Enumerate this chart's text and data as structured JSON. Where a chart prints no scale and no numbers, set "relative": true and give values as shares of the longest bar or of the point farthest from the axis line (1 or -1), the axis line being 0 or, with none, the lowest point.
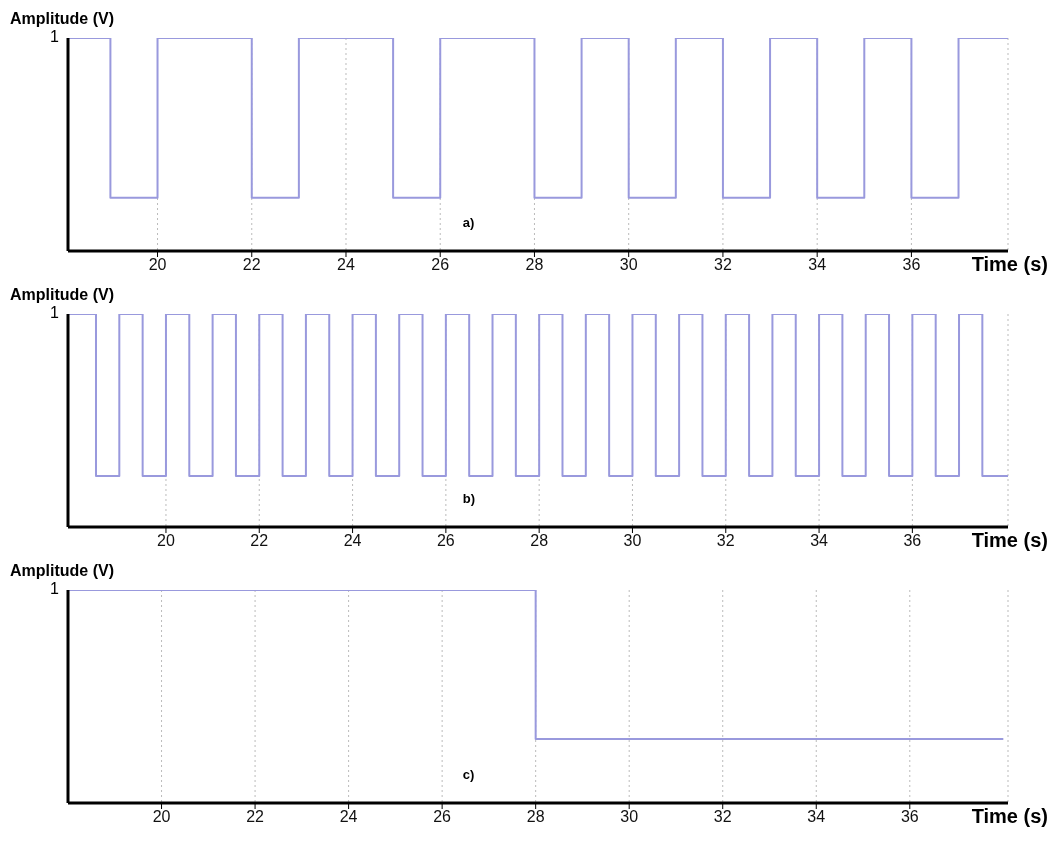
{
  "chart_data": [
    {
      "type": "step",
      "ylabel": "Amplitude (V)",
      "xlabel": "Time (s)",
      "annotations": [
        "1",
        "a)"
      ],
      "relative": true,
      "grid": "x",
      "color": "#9999dd",
      "x": [
        18.1,
        19,
        20,
        22,
        23,
        25,
        26,
        28,
        29,
        30,
        31,
        32,
        33,
        34,
        35,
        36,
        37,
        38.05
      ],
      "values": [
        1,
        0.25,
        1,
        0.25,
        1,
        0.25,
        1,
        0.25,
        1,
        0.25,
        1,
        0.25,
        1,
        0.25,
        1,
        0.25,
        1,
        1
      ],
      "xlim": [
        18.1,
        38.05
      ],
      "xticks": [
        20,
        22,
        24,
        26,
        28,
        30,
        32,
        34,
        36
      ]
    },
    {
      "type": "step",
      "ylabel": "Amplitude (V)",
      "xlabel": "Time (s)",
      "annotations": [
        "1",
        "b)"
      ],
      "relative": true,
      "grid": "x",
      "color": "#9999dd",
      "x": [
        17.9,
        18.5,
        19,
        19.5,
        20,
        20.5,
        21,
        21.5,
        22,
        22.5,
        23,
        23.5,
        24,
        24.5,
        25,
        25.5,
        26,
        26.5,
        27,
        27.5,
        28,
        28.5,
        29,
        29.5,
        30,
        30.5,
        31,
        31.5,
        32,
        32.5,
        33,
        33.5,
        34,
        34.5,
        35,
        35.5,
        36,
        36.5,
        37,
        37.5,
        38.05
      ],
      "values": [
        1,
        0.24,
        1,
        0.24,
        1,
        0.24,
        1,
        0.24,
        1,
        0.24,
        1,
        0.24,
        1,
        0.24,
        1,
        0.24,
        1,
        0.24,
        1,
        0.24,
        1,
        0.24,
        1,
        0.24,
        1,
        0.24,
        1,
        0.24,
        1,
        0.24,
        1,
        0.24,
        1,
        0.24,
        1,
        0.24,
        1,
        0.24,
        1,
        0.24,
        0.24
      ],
      "xlim": [
        17.9,
        38.05
      ],
      "xticks": [
        20,
        22,
        24,
        26,
        28,
        30,
        32,
        34,
        36
      ]
    },
    {
      "type": "step",
      "ylabel": "Amplitude (V)",
      "xlabel": "Time (s)",
      "annotations": [
        "1",
        "c)"
      ],
      "relative": true,
      "grid": "x",
      "color": "#9999dd",
      "x": [
        18,
        28,
        38
      ],
      "values": [
        1,
        0.3,
        0.3
      ],
      "xlim": [
        18,
        38.1
      ],
      "xticks": [
        20,
        22,
        24,
        26,
        28,
        30,
        32,
        34,
        36
      ]
    }
  ]
}
